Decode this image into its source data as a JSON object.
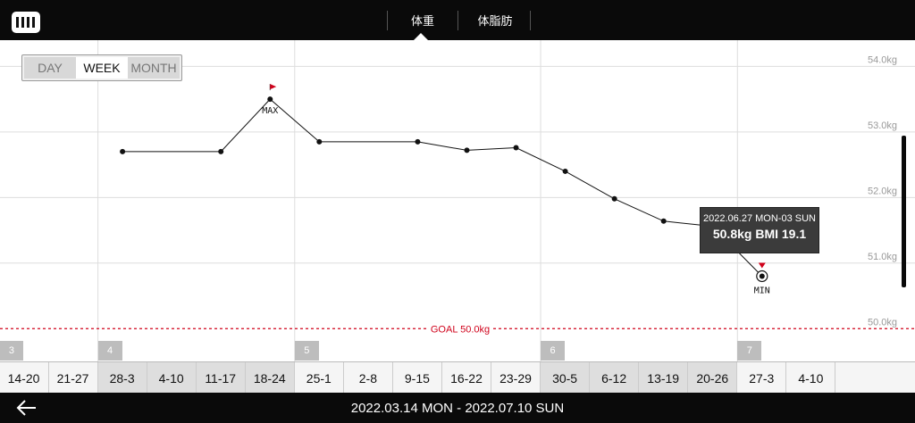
{
  "header": {
    "tabs": [
      {
        "label": "体重",
        "active": true
      },
      {
        "label": "体脂肪",
        "active": false
      }
    ]
  },
  "period_switch": {
    "options": [
      "DAY",
      "WEEK",
      "MONTH"
    ],
    "selected": "WEEK"
  },
  "chart_data": {
    "type": "line",
    "x": [
      "14-20",
      "21-27",
      "28-3",
      "4-10",
      "11-17",
      "18-24",
      "25-1",
      "2-8",
      "9-15",
      "16-22",
      "23-29",
      "30-5",
      "6-12",
      "13-19",
      "20-26",
      "27-3",
      "4-10"
    ],
    "series": [
      {
        "values": [
          null,
          null,
          52.7,
          null,
          52.7,
          53.5,
          52.85,
          null,
          52.85,
          52.72,
          52.76,
          52.4,
          51.98,
          51.64,
          51.56,
          50.8,
          null
        ]
      }
    ],
    "ylim": [
      49.5,
      54.4
    ],
    "yticks": [
      "50.0kg",
      "51.0kg",
      "52.0kg",
      "53.0kg",
      "54.0kg"
    ],
    "ytick_values": [
      50,
      51,
      52,
      53,
      54
    ],
    "goal_label": "GOAL 50.0kg",
    "goal_value": 50,
    "max_label": "MAX",
    "min_label": "MIN",
    "month_tags": [
      {
        "label": "3",
        "week_index": 0
      },
      {
        "label": "4",
        "week_index": 2
      },
      {
        "label": "5",
        "week_index": 6
      },
      {
        "label": "6",
        "week_index": 11
      },
      {
        "label": "7",
        "week_index": 15
      }
    ],
    "shaded_weeks": [
      2,
      3,
      4,
      5,
      11,
      12,
      13,
      14
    ],
    "colors": {
      "line": "#111111",
      "goal": "#d0021b",
      "max_flag": "#d0021b",
      "grid": "#dddddd"
    },
    "grid": true
  },
  "tooltip": {
    "date": "2022.06.27 MON-03 SUN",
    "value": "50.8kg  BMI 19.1"
  },
  "footer": {
    "range": "2022.03.14 MON - 2022.07.10 SUN"
  }
}
